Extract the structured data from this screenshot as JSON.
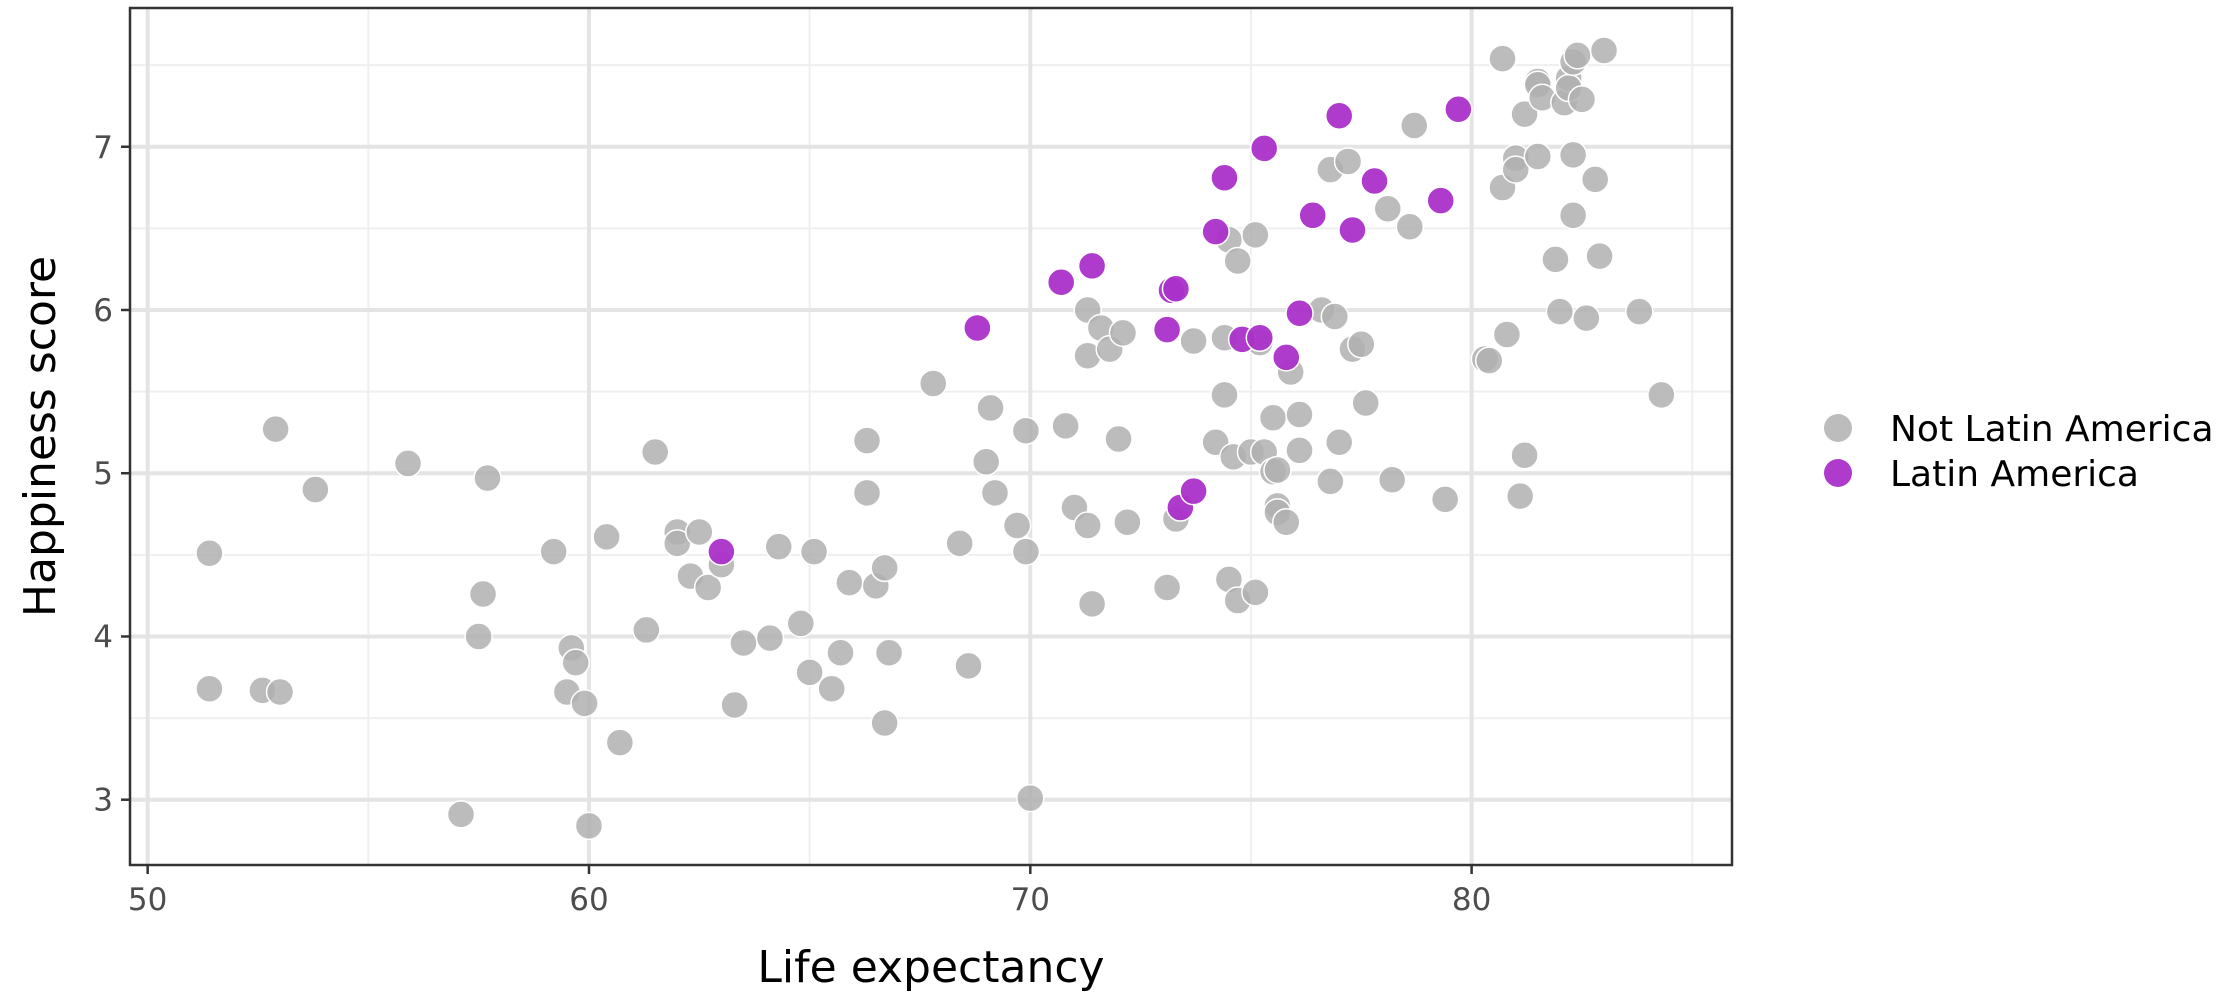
{
  "chart_data": {
    "type": "scatter",
    "title": "",
    "xlabel": "Life expectancy",
    "ylabel": "Happiness score",
    "xlim": [
      49.6,
      85.9
    ],
    "ylim": [
      2.6,
      7.85
    ],
    "x_ticks": [
      50,
      60,
      70,
      80
    ],
    "x_tick_labels": [
      "50",
      "60",
      "70",
      "80"
    ],
    "y_ticks": [
      3,
      4,
      5,
      6,
      7
    ],
    "y_tick_labels": [
      "3",
      "4",
      "5",
      "6",
      "7"
    ],
    "grid": true,
    "legend_position": "right",
    "series": [
      {
        "name": "Not Latin America",
        "color": "#b0b0b0",
        "points": [
          [
            51.4,
            4.51
          ],
          [
            51.4,
            3.68
          ],
          [
            52.6,
            3.67
          ],
          [
            53.0,
            3.66
          ],
          [
            52.9,
            5.27
          ],
          [
            53.8,
            4.9
          ],
          [
            55.9,
            5.06
          ],
          [
            57.1,
            2.91
          ],
          [
            57.5,
            4.0
          ],
          [
            57.6,
            4.26
          ],
          [
            57.7,
            4.97
          ],
          [
            59.2,
            4.52
          ],
          [
            59.5,
            3.66
          ],
          [
            59.6,
            3.93
          ],
          [
            59.7,
            3.84
          ],
          [
            59.9,
            3.59
          ],
          [
            60.0,
            2.84
          ],
          [
            60.4,
            4.61
          ],
          [
            60.7,
            3.35
          ],
          [
            61.3,
            4.04
          ],
          [
            61.5,
            5.13
          ],
          [
            62.0,
            4.64
          ],
          [
            62.0,
            4.57
          ],
          [
            62.3,
            4.37
          ],
          [
            62.5,
            4.64
          ],
          [
            62.7,
            4.3
          ],
          [
            63.0,
            4.44
          ],
          [
            63.3,
            3.58
          ],
          [
            63.5,
            3.96
          ],
          [
            64.1,
            3.99
          ],
          [
            64.3,
            4.55
          ],
          [
            64.8,
            4.08
          ],
          [
            65.0,
            3.78
          ],
          [
            65.1,
            4.52
          ],
          [
            65.5,
            3.68
          ],
          [
            65.7,
            3.9
          ],
          [
            65.9,
            4.33
          ],
          [
            66.3,
            5.2
          ],
          [
            66.3,
            4.88
          ],
          [
            66.5,
            4.31
          ],
          [
            66.7,
            3.47
          ],
          [
            66.7,
            4.42
          ],
          [
            66.8,
            3.9
          ],
          [
            67.8,
            5.55
          ],
          [
            68.4,
            4.57
          ],
          [
            68.6,
            3.82
          ],
          [
            69.0,
            5.07
          ],
          [
            69.1,
            5.4
          ],
          [
            69.2,
            4.88
          ],
          [
            69.7,
            4.68
          ],
          [
            69.9,
            5.26
          ],
          [
            69.9,
            4.52
          ],
          [
            70.0,
            3.01
          ],
          [
            70.8,
            5.29
          ],
          [
            71.0,
            4.79
          ],
          [
            71.3,
            6.0
          ],
          [
            71.3,
            5.72
          ],
          [
            71.3,
            4.68
          ],
          [
            71.4,
            4.2
          ],
          [
            71.6,
            5.89
          ],
          [
            71.8,
            5.76
          ],
          [
            72.0,
            5.21
          ],
          [
            72.1,
            5.86
          ],
          [
            72.2,
            4.7
          ],
          [
            73.1,
            4.3
          ],
          [
            73.3,
            4.72
          ],
          [
            73.7,
            5.81
          ],
          [
            74.2,
            5.19
          ],
          [
            74.4,
            5.83
          ],
          [
            74.4,
            5.48
          ],
          [
            74.5,
            6.43
          ],
          [
            74.5,
            4.35
          ],
          [
            74.6,
            5.1
          ],
          [
            74.7,
            6.3
          ],
          [
            74.7,
            4.22
          ],
          [
            75.0,
            5.13
          ],
          [
            75.1,
            6.46
          ],
          [
            75.1,
            4.27
          ],
          [
            75.2,
            5.8
          ],
          [
            75.3,
            5.13
          ],
          [
            75.5,
            5.01
          ],
          [
            75.5,
            5.34
          ],
          [
            75.6,
            4.8
          ],
          [
            75.6,
            4.76
          ],
          [
            75.6,
            5.02
          ],
          [
            75.8,
            4.7
          ],
          [
            75.9,
            5.62
          ],
          [
            76.1,
            5.36
          ],
          [
            76.1,
            5.14
          ],
          [
            76.6,
            6.0
          ],
          [
            76.8,
            6.86
          ],
          [
            76.8,
            4.95
          ],
          [
            76.9,
            5.96
          ],
          [
            77.0,
            5.19
          ],
          [
            77.2,
            6.91
          ],
          [
            77.3,
            5.76
          ],
          [
            77.5,
            5.79
          ],
          [
            77.6,
            5.43
          ],
          [
            78.1,
            6.62
          ],
          [
            78.2,
            4.96
          ],
          [
            78.6,
            6.51
          ],
          [
            78.7,
            7.13
          ],
          [
            79.4,
            4.84
          ],
          [
            80.3,
            5.7
          ],
          [
            80.4,
            5.69
          ],
          [
            80.7,
            6.75
          ],
          [
            80.7,
            7.54
          ],
          [
            80.8,
            5.85
          ],
          [
            81.0,
            6.93
          ],
          [
            81.0,
            6.86
          ],
          [
            81.1,
            4.86
          ],
          [
            81.2,
            5.11
          ],
          [
            81.2,
            7.2
          ],
          [
            81.5,
            6.94
          ],
          [
            81.5,
            7.4
          ],
          [
            81.5,
            7.38
          ],
          [
            81.6,
            7.3
          ],
          [
            81.9,
            6.31
          ],
          [
            82.0,
            5.99
          ],
          [
            82.1,
            7.27
          ],
          [
            82.2,
            7.42
          ],
          [
            82.2,
            7.36
          ],
          [
            82.3,
            6.95
          ],
          [
            82.3,
            6.58
          ],
          [
            82.3,
            7.52
          ],
          [
            82.4,
            7.56
          ],
          [
            82.5,
            7.29
          ],
          [
            82.6,
            5.95
          ],
          [
            82.8,
            6.8
          ],
          [
            82.9,
            6.33
          ],
          [
            83.0,
            7.59
          ],
          [
            83.8,
            5.99
          ],
          [
            84.3,
            5.48
          ]
        ]
      },
      {
        "name": "Latin America",
        "color": "#aa30c8",
        "points": [
          [
            63.0,
            4.52
          ],
          [
            68.8,
            5.89
          ],
          [
            70.7,
            6.17
          ],
          [
            71.4,
            6.27
          ],
          [
            73.1,
            5.88
          ],
          [
            73.2,
            6.12
          ],
          [
            73.3,
            6.13
          ],
          [
            73.4,
            4.79
          ],
          [
            73.7,
            4.89
          ],
          [
            74.2,
            6.48
          ],
          [
            74.4,
            6.81
          ],
          [
            74.8,
            5.82
          ],
          [
            75.2,
            5.83
          ],
          [
            75.3,
            6.99
          ],
          [
            75.8,
            5.71
          ],
          [
            76.1,
            5.98
          ],
          [
            76.4,
            6.58
          ],
          [
            77.0,
            7.19
          ],
          [
            77.3,
            6.49
          ],
          [
            77.8,
            6.79
          ],
          [
            79.3,
            6.67
          ],
          [
            79.7,
            7.23
          ]
        ]
      }
    ]
  }
}
